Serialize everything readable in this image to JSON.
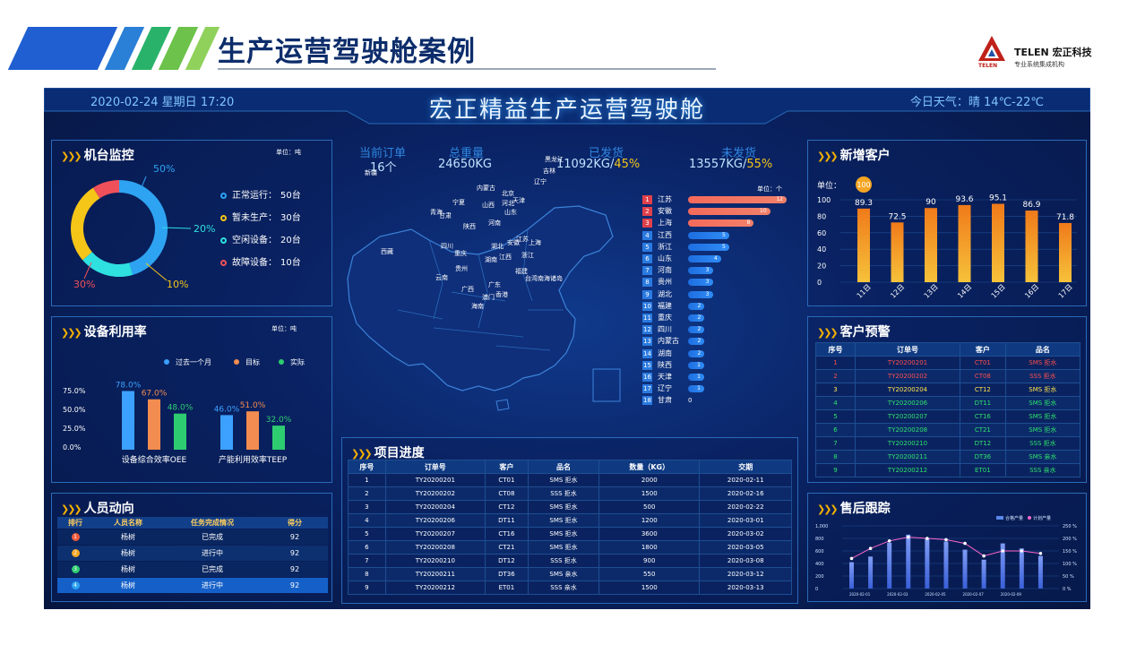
{
  "slide": {
    "title": "生产运营驾驶舱案例"
  },
  "logo": {
    "name": "TELEN 宏正科技",
    "sub": "专业系统集成机构",
    "small": "TELEN"
  },
  "dashboard": {
    "title": "宏正精益生产运营驾驶舱",
    "datetime": "2020-02-24 星期日  17:20",
    "weather": "今日天气：晴 14℃-22℃"
  },
  "machine": {
    "title": "机台监控",
    "unit": "单位：吨",
    "pct_labels": [
      "50%",
      "20%",
      "10%",
      "30%"
    ],
    "legend": [
      {
        "label": "正常运行：",
        "value": "50台",
        "color": "#2ea3f2"
      },
      {
        "label": "暂未生产：",
        "value": "30台",
        "color": "#f5c518"
      },
      {
        "label": "空闲设备：",
        "value": "20台",
        "color": "#2ee0e0"
      },
      {
        "label": "故障设备：",
        "value": "10台",
        "color": "#f0505a"
      }
    ]
  },
  "utilization": {
    "title": "设备利用率",
    "unit": "单位：吨",
    "legend": [
      {
        "label": "过去一个月",
        "color": "#3ca0ff"
      },
      {
        "label": "目标",
        "color": "#f28c50"
      },
      {
        "label": "实际",
        "color": "#2ecc71"
      }
    ]
  },
  "personnel": {
    "title": "人员动向",
    "headers": [
      "排行",
      "人员名称",
      "任务完成情况",
      "得分"
    ],
    "rows": [
      {
        "rank": "1",
        "name": "杨树",
        "status": "已完成",
        "score": "92",
        "color": "#f05a3a"
      },
      {
        "rank": "2",
        "name": "杨树",
        "status": "进行中",
        "score": "92",
        "color": "#f5a623"
      },
      {
        "rank": "3",
        "name": "杨树",
        "status": "已完成",
        "score": "92",
        "color": "#2ecc71"
      },
      {
        "rank": "4",
        "name": "杨树",
        "status": "进行中",
        "score": "92",
        "color": "#2ea3f2"
      }
    ]
  },
  "kpis": [
    {
      "label": "当前订单",
      "value": "16个"
    },
    {
      "label": "总重量",
      "value": "24650KG"
    },
    {
      "label": "已发货",
      "value": "11092KG/",
      "pct": "45%"
    },
    {
      "label": "未发货",
      "value": "13557KG/",
      "pct": "55%"
    }
  ],
  "ranking": {
    "unit": "单位：个",
    "items": [
      {
        "rank": "1",
        "name": "江苏",
        "value": 12
      },
      {
        "rank": "2",
        "name": "安徽",
        "value": 10
      },
      {
        "rank": "3",
        "name": "上海",
        "value": 8
      },
      {
        "rank": "4",
        "name": "江西",
        "value": 5
      },
      {
        "rank": "5",
        "name": "浙江",
        "value": 5
      },
      {
        "rank": "6",
        "name": "山东",
        "value": 4
      },
      {
        "rank": "7",
        "name": "河南",
        "value": 3
      },
      {
        "rank": "8",
        "name": "贵州",
        "value": 3
      },
      {
        "rank": "9",
        "name": "湖北",
        "value": 3
      },
      {
        "rank": "10",
        "name": "福建",
        "value": 2
      },
      {
        "rank": "11",
        "name": "重庆",
        "value": 2
      },
      {
        "rank": "12",
        "name": "四川",
        "value": 2
      },
      {
        "rank": "13",
        "name": "内蒙古",
        "value": 2
      },
      {
        "rank": "14",
        "name": "湖南",
        "value": 2
      },
      {
        "rank": "15",
        "name": "陕西",
        "value": 1
      },
      {
        "rank": "16",
        "name": "天津",
        "value": 1
      },
      {
        "rank": "17",
        "name": "辽宁",
        "value": 1
      },
      {
        "rank": "18",
        "name": "甘肃",
        "value": 0
      }
    ]
  },
  "map": {
    "provinces": [
      "新疆",
      "黑龙江",
      "吉林",
      "辽宁",
      "内蒙古",
      "北京",
      "天津",
      "宁夏",
      "山西",
      "山东",
      "青海",
      "甘肃",
      "陕西",
      "河南",
      "江苏",
      "安徽",
      "上海",
      "西藏",
      "四川",
      "重庆",
      "湖北",
      "浙江",
      "湖南",
      "江西",
      "贵州",
      "云南",
      "福建",
      "台湾",
      "南海诸岛",
      "广西",
      "广东",
      "澳门",
      "香港",
      "海南",
      "河北"
    ]
  },
  "project": {
    "title": "项目进度",
    "headers": [
      "序号",
      "订单号",
      "客户",
      "品名",
      "数量（KG）",
      "交期"
    ],
    "rows": [
      [
        "1",
        "TY20200201",
        "CT01",
        "SMS 拒水",
        "2000",
        "2020-02-11"
      ],
      [
        "2",
        "TY20200202",
        "CT08",
        "SSS 拒水",
        "1500",
        "2020-02-16"
      ],
      [
        "3",
        "TY20200204",
        "CT12",
        "SMS 拒水",
        "500",
        "2020-02-22"
      ],
      [
        "4",
        "TY20200206",
        "DT11",
        "SMS 拒水",
        "1200",
        "2020-03-01"
      ],
      [
        "5",
        "TY20200207",
        "CT16",
        "SMS 拒水",
        "3600",
        "2020-03-02"
      ],
      [
        "6",
        "TY20200208",
        "CT21",
        "SMS 拒水",
        "1800",
        "2020-03-05"
      ],
      [
        "7",
        "TY20200210",
        "DT12",
        "SSS 拒水",
        "900",
        "2020-03-08"
      ],
      [
        "8",
        "TY20200211",
        "DT36",
        "SMS 亲水",
        "550",
        "2020-03-12"
      ],
      [
        "9",
        "TY20200212",
        "ET01",
        "SSS 亲水",
        "1500",
        "2020-03-13"
      ]
    ]
  },
  "customers": {
    "title": "新增客户",
    "unit": "单位："
  },
  "warning": {
    "title": "客户预警",
    "headers": [
      "序号",
      "订单号",
      "客户",
      "品名"
    ],
    "rows": [
      {
        "cells": [
          "1",
          "TY20200201",
          "CT01",
          "SMS 拒水"
        ],
        "color": "#ff4d4d"
      },
      {
        "cells": [
          "2",
          "TY20200202",
          "CT08",
          "SSS 拒水"
        ],
        "color": "#ff4d4d"
      },
      {
        "cells": [
          "3",
          "TY20200204",
          "CT12",
          "SMS 拒水"
        ],
        "color": "#ffe14d"
      },
      {
        "cells": [
          "4",
          "TY20200206",
          "DT11",
          "SMS 拒水"
        ],
        "color": "#2ee26b"
      },
      {
        "cells": [
          "5",
          "TY20200207",
          "CT16",
          "SMS 拒水"
        ],
        "color": "#2ee26b"
      },
      {
        "cells": [
          "6",
          "TY20200208",
          "CT21",
          "SMS 拒水"
        ],
        "color": "#2ee26b"
      },
      {
        "cells": [
          "7",
          "TY20200210",
          "DT12",
          "SSS 拒水"
        ],
        "color": "#2ee26b"
      },
      {
        "cells": [
          "8",
          "TY20200211",
          "DT36",
          "SMS 亲水"
        ],
        "color": "#2ee26b"
      },
      {
        "cells": [
          "9",
          "TY20200212",
          "ET01",
          "SSS 亲水"
        ],
        "color": "#2ee26b"
      }
    ]
  },
  "aftersales": {
    "title": "售后跟踪"
  },
  "chart_data": [
    {
      "type": "pie",
      "name": "机台监控",
      "labels": [
        "正常运行",
        "暂未生产",
        "空闲设备",
        "故障设备"
      ],
      "values": [
        50,
        30,
        20,
        10
      ],
      "pct_labels": [
        "50%",
        "30%",
        "20%",
        "10%"
      ]
    },
    {
      "type": "bar",
      "name": "设备利用率",
      "categories": [
        "设备综合效率OEE",
        "产能利用效率TEEP"
      ],
      "series": [
        {
          "name": "过去一个月",
          "values": [
            78.0,
            46.0
          ]
        },
        {
          "name": "目标",
          "values": [
            67.0,
            51.0
          ]
        },
        {
          "name": "实际",
          "values": [
            48.0,
            32.0
          ]
        }
      ],
      "yticks": [
        "75.0%",
        "50.0%",
        "25.0%",
        "0.0%"
      ],
      "ylim": [
        0,
        100
      ]
    },
    {
      "type": "bar",
      "name": "新增客户",
      "categories": [
        "11日",
        "12日",
        "13日",
        "14日",
        "15日",
        "16日",
        "17日"
      ],
      "values": [
        89.3,
        72.5,
        90,
        93.6,
        95.1,
        86.9,
        71.8
      ],
      "highlight": "100",
      "yticks": [
        "100",
        "80",
        "60",
        "40",
        "20",
        "0"
      ],
      "ylim": [
        0,
        100
      ]
    },
    {
      "type": "bar",
      "name": "售后跟踪",
      "categories": [
        "2020-02-01",
        "2020-02-02",
        "2020-02-03",
        "2020-02-04",
        "2020-02-05",
        "2020-02-06",
        "2020-02-07",
        "2020-02-08",
        "2020-02-09",
        "2020-02-10",
        "2020-02-11"
      ],
      "xticks": [
        "2020-02-01",
        "2020-02-03",
        "2020-02-05",
        "2020-02-07",
        "2020-02-09"
      ],
      "series": [
        {
          "name": "合格产量",
          "type": "bar",
          "values": [
            420,
            510,
            730,
            860,
            800,
            750,
            620,
            460,
            720,
            640,
            520
          ]
        },
        {
          "name": "计划产量",
          "type": "line",
          "values": [
            120,
            160,
            190,
            205,
            200,
            195,
            180,
            130,
            150,
            150,
            140
          ]
        }
      ],
      "yticks_left": [
        "1,000",
        "800",
        "600",
        "400",
        "200",
        "0"
      ],
      "yticks_right": [
        "250 %",
        "200 %",
        "150 %",
        "100 %",
        "50 %",
        "0 %"
      ],
      "ylim": [
        0,
        1000
      ],
      "ylim_right": [
        0,
        250
      ]
    }
  ]
}
